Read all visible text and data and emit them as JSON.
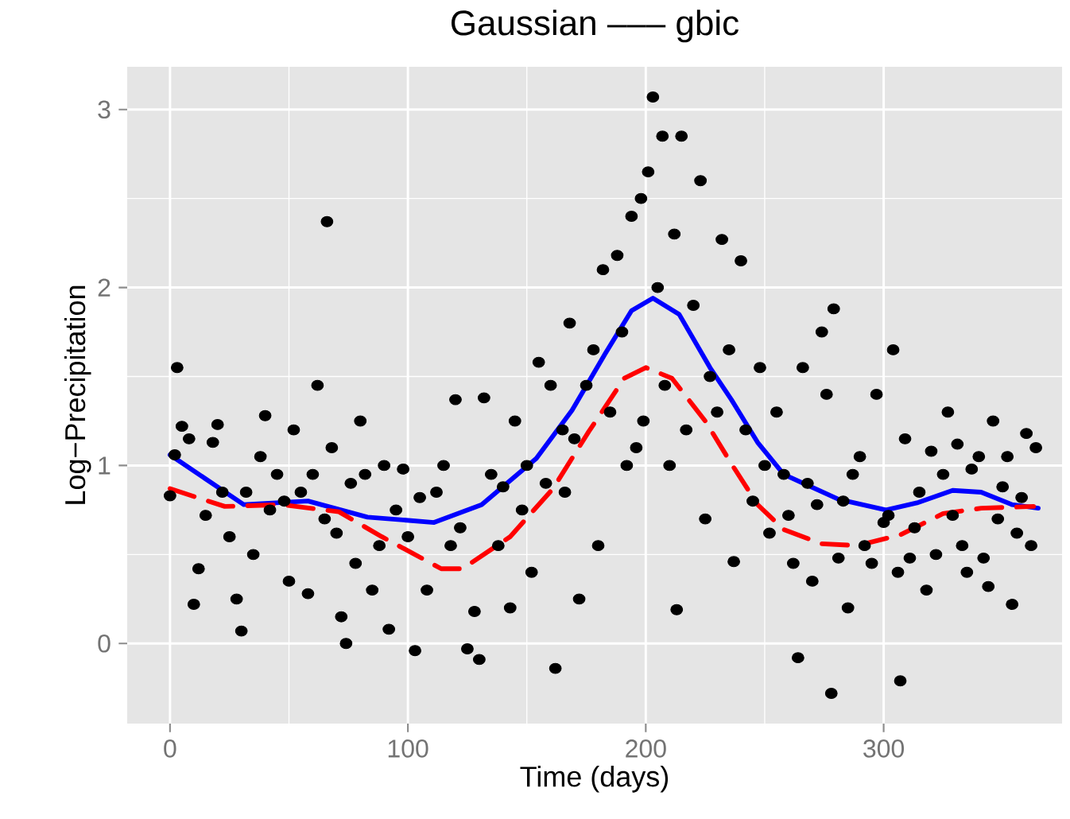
{
  "chart_data": {
    "type": "scatter",
    "title": "Gaussian ––– gbic",
    "xlabel": "Time (days)",
    "ylabel": "Log−Precipitation",
    "xlim": [
      -18,
      375
    ],
    "ylim": [
      -0.45,
      3.24
    ],
    "xticks": [
      0,
      100,
      200,
      300
    ],
    "yticks": [
      0,
      1,
      2,
      3
    ],
    "grid": true,
    "series": [
      {
        "color": "#000000",
        "marker": "circle",
        "x": [
          3,
          2,
          0,
          5,
          8,
          12,
          10,
          15,
          18,
          20,
          22,
          25,
          28,
          30,
          32,
          35,
          38,
          40,
          42,
          45,
          48,
          50,
          52,
          55,
          58,
          60,
          62,
          65,
          66,
          68,
          70,
          72,
          74,
          76,
          78,
          80,
          82,
          85,
          88,
          90,
          92,
          95,
          98,
          100,
          103,
          105,
          108,
          112,
          115,
          118,
          120,
          122,
          125,
          128,
          130,
          132,
          135,
          138,
          140,
          143,
          145,
          148,
          150,
          152,
          155,
          158,
          160,
          162,
          165,
          166,
          168,
          170,
          172,
          175,
          178,
          180,
          182,
          185,
          188,
          190,
          192,
          194,
          196,
          198,
          199,
          201,
          203,
          205,
          207,
          208,
          210,
          212,
          213,
          215,
          217,
          220,
          223,
          225,
          227,
          230,
          232,
          235,
          237,
          240,
          242,
          245,
          248,
          250,
          252,
          255,
          258,
          260,
          262,
          264,
          266,
          268,
          270,
          272,
          274,
          276,
          278,
          279,
          281,
          283,
          285,
          287,
          290,
          292,
          295,
          297,
          300,
          302,
          304,
          306,
          307,
          309,
          311,
          313,
          315,
          318,
          320,
          322,
          325,
          327,
          329,
          331,
          333,
          335,
          337,
          340,
          342,
          344,
          346,
          348,
          350,
          352,
          354,
          356,
          358,
          360,
          362,
          364
        ],
        "values": [
          1.55,
          1.06,
          0.83,
          1.22,
          1.15,
          0.42,
          0.22,
          0.72,
          1.13,
          1.23,
          0.85,
          0.6,
          0.25,
          0.07,
          0.85,
          0.5,
          1.05,
          1.28,
          0.75,
          0.95,
          0.8,
          0.35,
          1.2,
          0.85,
          0.28,
          0.95,
          1.45,
          0.7,
          2.37,
          1.1,
          0.62,
          0.15,
          0.0,
          0.9,
          0.45,
          1.25,
          0.95,
          0.3,
          0.55,
          1.0,
          0.08,
          0.75,
          0.98,
          0.6,
          -0.04,
          0.82,
          0.3,
          0.85,
          1.0,
          0.55,
          1.37,
          0.65,
          -0.03,
          0.18,
          -0.09,
          1.38,
          0.95,
          0.55,
          0.88,
          0.2,
          1.25,
          0.75,
          1.0,
          0.4,
          1.58,
          0.9,
          1.45,
          -0.14,
          1.2,
          0.85,
          1.8,
          1.15,
          0.25,
          1.45,
          1.65,
          0.55,
          2.1,
          1.3,
          2.18,
          1.75,
          1.0,
          2.4,
          1.1,
          2.5,
          1.25,
          2.65,
          3.07,
          2.0,
          2.85,
          1.45,
          1.0,
          2.3,
          0.19,
          2.85,
          1.2,
          1.9,
          2.6,
          0.7,
          1.5,
          1.3,
          2.27,
          1.65,
          0.46,
          2.15,
          1.2,
          0.8,
          1.55,
          1.0,
          0.62,
          1.3,
          0.95,
          0.72,
          0.45,
          -0.08,
          1.55,
          0.9,
          0.35,
          0.78,
          1.75,
          1.4,
          -0.28,
          1.88,
          0.48,
          0.8,
          0.2,
          0.95,
          1.05,
          0.55,
          0.45,
          1.4,
          0.68,
          0.72,
          1.65,
          0.4,
          -0.21,
          1.15,
          0.48,
          0.65,
          0.85,
          0.3,
          1.08,
          0.5,
          0.95,
          1.3,
          0.72,
          1.12,
          0.55,
          0.4,
          0.98,
          1.05,
          0.48,
          0.32,
          1.25,
          0.7,
          0.88,
          1.05,
          0.22,
          0.62,
          0.82,
          1.18,
          0.55,
          1.1
        ]
      },
      {
        "type": "line",
        "color": "#0000ff",
        "marker": "none",
        "line_style": "solid",
        "x": [
          0,
          31,
          58,
          83,
          111,
          131,
          154,
          169,
          183,
          194,
          203,
          214,
          227,
          236,
          247,
          258,
          281,
          301,
          314,
          329,
          341,
          354,
          365
        ],
        "values": [
          1.06,
          0.78,
          0.8,
          0.71,
          0.68,
          0.78,
          1.04,
          1.31,
          1.63,
          1.87,
          1.94,
          1.85,
          1.55,
          1.37,
          1.13,
          0.95,
          0.81,
          0.75,
          0.79,
          0.86,
          0.85,
          0.78,
          0.76
        ]
      },
      {
        "type": "line",
        "color": "#ff0000",
        "marker": "none",
        "line_style": "dashed",
        "x": [
          0,
          23,
          47,
          71,
          89,
          114,
          123,
          143,
          161,
          176,
          191,
          200,
          211,
          225,
          236,
          247,
          258,
          274,
          289,
          307,
          325,
          341,
          363
        ],
        "values": [
          0.87,
          0.77,
          0.78,
          0.74,
          0.6,
          0.42,
          0.42,
          0.6,
          0.87,
          1.19,
          1.49,
          1.55,
          1.49,
          1.25,
          1.01,
          0.78,
          0.64,
          0.56,
          0.55,
          0.61,
          0.73,
          0.76,
          0.77
        ]
      }
    ]
  }
}
